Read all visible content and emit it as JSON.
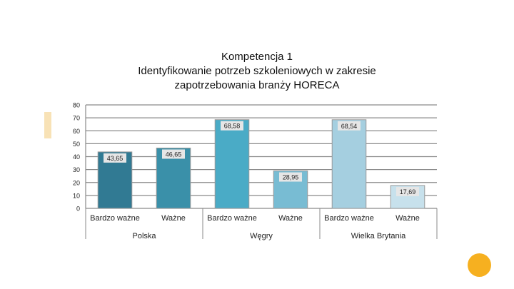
{
  "slide": {
    "title_lines": [
      "Kompetencja 1",
      "Identyfikowanie potrzeb szkoleniowych w zakresie",
      "zapotrzebowania branży HORECA"
    ]
  },
  "chart_data": {
    "type": "bar",
    "title": "Kompetencja 1 Identyfikowanie potrzeb szkoleniowych w zakresie zapotrzebowania branży HORECA",
    "ylim": [
      0,
      80
    ],
    "yticks": [
      0,
      10,
      20,
      30,
      40,
      50,
      60,
      70,
      80
    ],
    "grid": true,
    "groups": [
      "Polska",
      "Węgry",
      "Wielka Brytania"
    ],
    "categories": [
      "Bardzo ważne",
      "Ważne",
      "Bardzo ważne",
      "Ważne",
      "Bardzo ważne",
      "Ważne"
    ],
    "values": [
      43.65,
      46.65,
      68.58,
      28.95,
      68.54,
      17.69
    ],
    "value_labels": [
      "43,65",
      "46,65",
      "68,58",
      "28,95",
      "68,54",
      "17,69"
    ],
    "colors": [
      "#317a93",
      "#3a90a9",
      "#4aabc6",
      "#78bcd3",
      "#a5cfe0",
      "#c7e1ec"
    ],
    "data_label_background": "#e6e6e6"
  }
}
